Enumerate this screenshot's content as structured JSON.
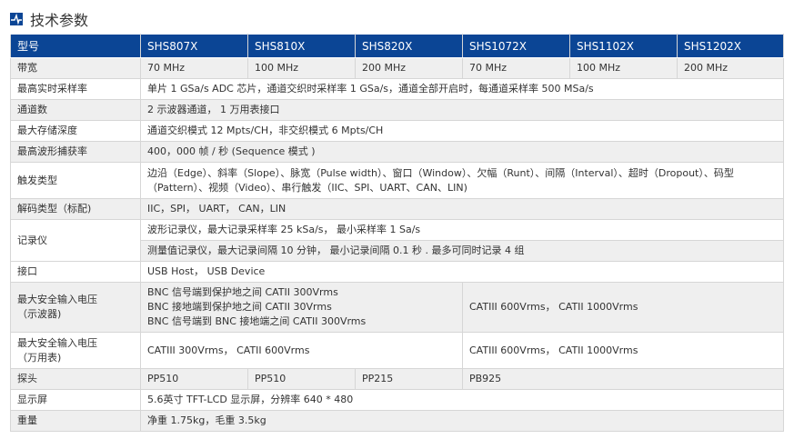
{
  "title": "技术参数",
  "accent": "#0b4595",
  "header": [
    "型号",
    "SHS807X",
    "SHS810X",
    "SHS820X",
    "SHS1072X",
    "SHS1102X",
    "SHS1202X"
  ],
  "bandwidth": {
    "label": "带宽",
    "values": [
      "70 MHz",
      "100 MHz",
      "200 MHz",
      "70 MHz",
      "100 MHz",
      "200 MHz"
    ]
  },
  "sampling": {
    "label": "最高实时采样率",
    "value": "单片 1 GSa/s ADC 芯片，通道交织时采样率 1 GSa/s，通道全部开启时，每通道采样率 500 MSa/s"
  },
  "channels": {
    "label": "通道数",
    "value": "2 示波器通道， 1 万用表接口"
  },
  "memory": {
    "label": "最大存储深度",
    "value": "通道交织模式 12 Mpts/CH，非交织模式 6 Mpts/CH"
  },
  "waveform": {
    "label": "最高波形捕获率",
    "value": "400，000 帧 / 秒 (Sequence 模式 )"
  },
  "trigger": {
    "label": "触发类型",
    "value": "边沿（Edge）、斜率（Slope）、脉宽（Pulse width）、窗口（Window）、欠幅（Runt）、间隔（Interval）、超时（Dropout）、码型（Pattern）、视频（Video）、串行触发（IIC、SPI、UART、CAN、LIN)"
  },
  "decode": {
    "label": "解码类型（标配)",
    "value": "IIC，SPI， UART， CAN，LIN"
  },
  "recorder": {
    "label": "记录仪",
    "values": [
      "波形记录仪，最大记录采样率 25 kSa/s， 最小采样率 1 Sa/s",
      "测量值记录仪，最大记录间隔 10 分钟， 最小记录间隔 0.1 秒 . 最多可同时记录 4 组"
    ]
  },
  "interface": {
    "label": "接口",
    "value": "USB Host， USB Device"
  },
  "voltage_osc": {
    "label1": "最大安全输入电压",
    "label2": "（示波器)",
    "lines": [
      "BNC 信号端到保护地之间 CATII 300Vrms",
      "BNC 接地端到保护地之间 CATII 30Vrms",
      "BNC 信号端到 BNC 接地端之间 CATII 300Vrms"
    ],
    "right": "CATIII 600Vrms， CATII 1000Vrms"
  },
  "voltage_dmm": {
    "label1": "最大安全输入电压",
    "label2": "（万用表)",
    "left": "CATIII 300Vrms， CATII 600Vrms",
    "right": "CATIII 600Vrms， CATII 1000Vrms"
  },
  "probe": {
    "label": "探头",
    "values": [
      "PP510",
      "PP510",
      "PP215",
      "PB925"
    ]
  },
  "display": {
    "label": "显示屏",
    "value": "5.6英寸 TFT-LCD 显示屏，分辨率 640 * 480"
  },
  "weight": {
    "label": "重量",
    "value": "净重 1.75kg，毛重 3.5kg"
  }
}
